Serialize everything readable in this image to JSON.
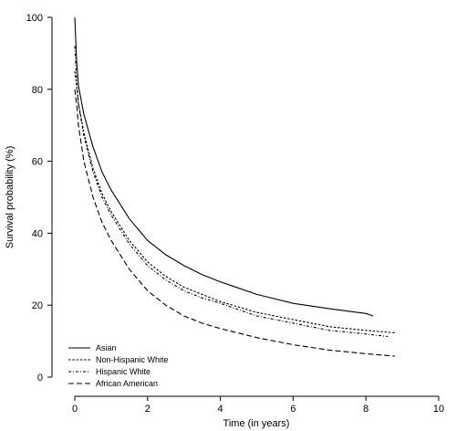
{
  "chart_data": {
    "type": "line",
    "xlabel": "Time (in years)",
    "ylabel": "Survival probability (%)",
    "xlim": [
      0,
      10
    ],
    "ylim": [
      0,
      100
    ],
    "xticks": [
      0,
      2,
      4,
      6,
      8,
      10
    ],
    "yticks": [
      0,
      20,
      40,
      60,
      80,
      100
    ],
    "grid": false,
    "legend_position": "bottom-left",
    "series": [
      {
        "name": "Asian",
        "style": "solid",
        "x": [
          0,
          0.05,
          0.1,
          0.25,
          0.5,
          0.75,
          1,
          1.5,
          2,
          2.5,
          3,
          3.5,
          4,
          5,
          6,
          7,
          8,
          8.2
        ],
        "y": [
          100,
          88,
          81,
          73,
          64,
          57,
          52,
          44,
          38,
          34,
          31,
          28.5,
          26.5,
          23,
          20.5,
          19,
          17.7,
          17
        ]
      },
      {
        "name": "Non-Hispanic White",
        "style": "dotted",
        "x": [
          0,
          0.05,
          0.1,
          0.25,
          0.5,
          0.75,
          1,
          1.5,
          2,
          2.5,
          3,
          3.5,
          4,
          5,
          6,
          7,
          8,
          8.8
        ],
        "y": [
          85,
          81,
          76,
          68,
          58,
          51,
          46,
          38,
          32,
          28,
          25,
          23,
          21,
          18,
          16,
          14,
          13,
          12.3
        ]
      },
      {
        "name": "Hispanic White",
        "style": "dashdot",
        "x": [
          0,
          0.05,
          0.1,
          0.25,
          0.5,
          0.75,
          1,
          1.5,
          2,
          2.5,
          3,
          3.5,
          4,
          5,
          6,
          7,
          8,
          8.6
        ],
        "y": [
          92,
          82,
          76,
          67,
          57,
          50,
          45,
          37,
          31,
          27,
          24,
          22,
          20.5,
          17,
          15,
          13,
          12,
          11.3
        ]
      },
      {
        "name": "African American",
        "style": "dashed",
        "x": [
          0,
          0.05,
          0.1,
          0.25,
          0.5,
          0.75,
          1,
          1.5,
          2,
          2.5,
          3,
          3.5,
          4,
          5,
          6,
          7,
          8,
          8.8
        ],
        "y": [
          80,
          76,
          70,
          60,
          50,
          43,
          38,
          30,
          24,
          20,
          17,
          15,
          13.5,
          11,
          9,
          7.5,
          6.5,
          5.8
        ]
      }
    ]
  }
}
